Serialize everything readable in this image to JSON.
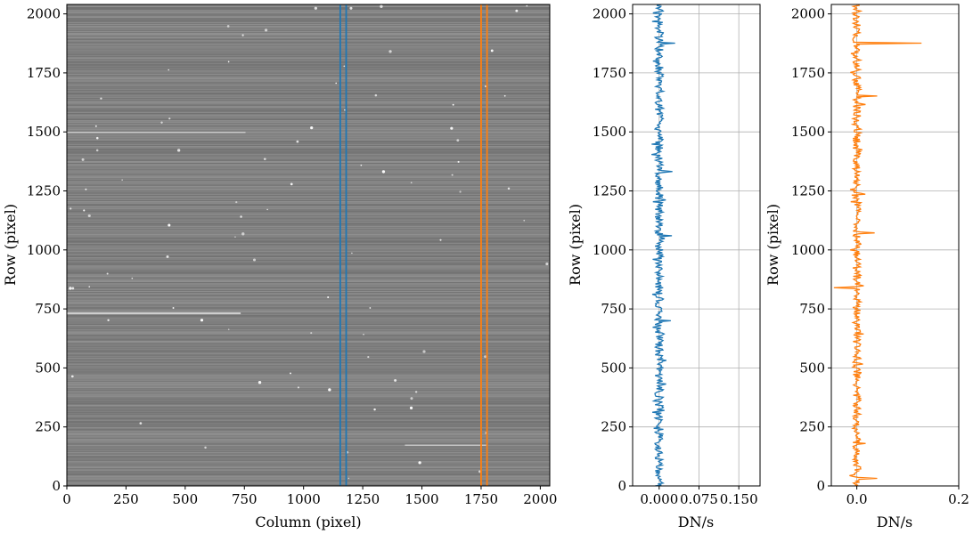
{
  "colors": {
    "blue": "#1f77b4",
    "orange": "#ff7f0e",
    "grid": "#b0b0b0",
    "image_base": "#8c8c8c"
  },
  "chart_data": [
    {
      "type": "heatmap",
      "xlabel": "Column (pixel)",
      "ylabel": "Row (pixel)",
      "xlim": [
        0,
        2040
      ],
      "ylim": [
        0,
        2040
      ],
      "xticks": [
        "0",
        "250",
        "500",
        "750",
        "1000",
        "1250",
        "1500",
        "1750",
        "2000"
      ],
      "yticks": [
        "0",
        "250",
        "500",
        "750",
        "1000",
        "1250",
        "1500",
        "1750",
        "2000"
      ],
      "grid": false,
      "colormap": "gray",
      "column_markers": [
        {
          "color": "blue",
          "x": [
            1155,
            1180
          ]
        },
        {
          "color": "orange",
          "x": [
            1750,
            1775
          ]
        }
      ]
    },
    {
      "type": "line",
      "orientation": "vertical",
      "series_color": "blue",
      "xlabel": "DN/s",
      "ylabel": "Row (pixel)",
      "xlim": [
        -0.05,
        0.19
      ],
      "ylim": [
        0,
        2040
      ],
      "xticks": [
        "0.000",
        "0.075",
        "0.150"
      ],
      "yticks": [
        "0",
        "250",
        "500",
        "750",
        "1000",
        "1250",
        "1500",
        "1750",
        "2000"
      ],
      "grid": true,
      "center": 0.0,
      "spikes": [
        {
          "row": 1875,
          "value": 0.03
        },
        {
          "row": 1330,
          "value": 0.025
        },
        {
          "row": 1060,
          "value": 0.024
        },
        {
          "row": 700,
          "value": 0.022
        }
      ]
    },
    {
      "type": "line",
      "orientation": "vertical",
      "series_color": "orange",
      "xlabel": "DN/s",
      "ylabel": "Row (pixel)",
      "xlim": [
        -0.05,
        0.2
      ],
      "ylim": [
        0,
        2040
      ],
      "xticks": [
        "0.0",
        "0.2"
      ],
      "yticks": [
        "0",
        "250",
        "500",
        "750",
        "1000",
        "1250",
        "1500",
        "1750",
        "2000"
      ],
      "grid": true,
      "center": 0.0,
      "spikes": [
        {
          "row": 1875,
          "value": 0.127
        },
        {
          "row": 1650,
          "value": 0.04
        },
        {
          "row": 1070,
          "value": 0.035
        },
        {
          "row": 840,
          "value": -0.045
        },
        {
          "row": 30,
          "value": 0.04
        }
      ]
    }
  ]
}
